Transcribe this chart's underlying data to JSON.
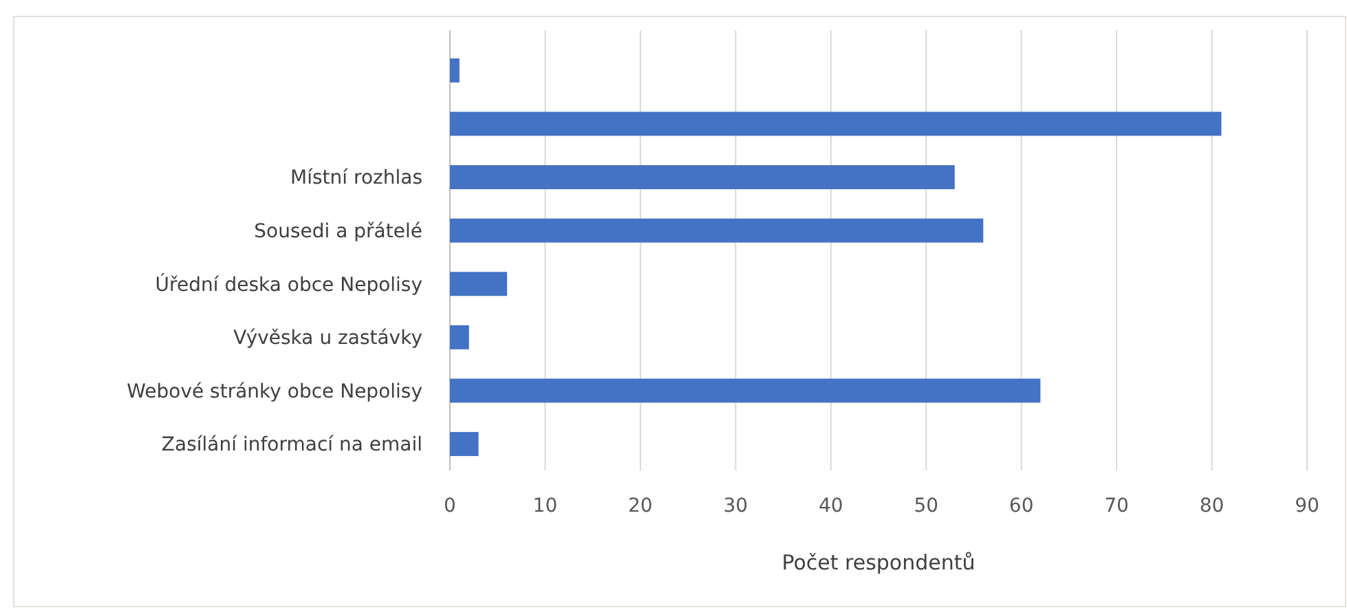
{
  "chart_data": {
    "type": "bar",
    "orientation": "horizontal",
    "categories": [
      null,
      null,
      "Místní rozhlas",
      "Sousedi a přátelé",
      "Úřední deska obce Nepolisy",
      "Vývěska u zastávky",
      "Webové stránky obce Nepolisy",
      "Zasílání informací na email"
    ],
    "values": [
      1,
      81,
      53,
      56,
      6,
      2,
      62,
      3
    ],
    "color": "#4472c4",
    "xlim": [
      0,
      90
    ],
    "xticks": [
      0,
      10,
      20,
      30,
      40,
      50,
      60,
      70,
      80,
      90
    ],
    "grid": "x",
    "xlabel": "Počet respondentů"
  }
}
